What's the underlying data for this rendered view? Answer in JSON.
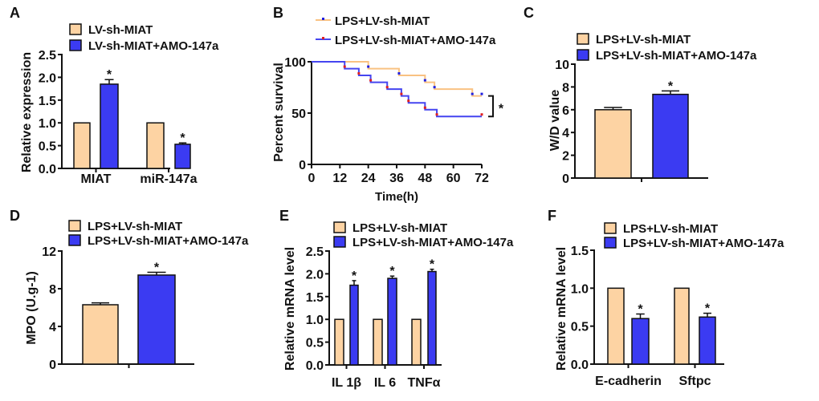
{
  "colors": {
    "control": "#FDD3A3",
    "treatment": "#3B3BF2",
    "survival_control": "#F9C282",
    "survival_treatment": "#4545F0",
    "censor_control": "#2020E0",
    "censor_treatment": "#E02020"
  },
  "chart_data": [
    {
      "panel": "A",
      "type": "bar",
      "categories": [
        "MIAT",
        "miR-147a"
      ],
      "series": [
        {
          "name": "LV-sh-MIAT",
          "values": [
            1.0,
            1.0
          ],
          "errors": [
            0,
            0
          ],
          "marks": [
            "",
            ""
          ]
        },
        {
          "name": "LV-sh-MIAT+AMO-147a",
          "values": [
            1.85,
            0.53
          ],
          "errors": [
            0.1,
            0.03
          ],
          "marks": [
            "*",
            "*"
          ]
        }
      ],
      "ylabel": "Relative expression",
      "xlabel": "",
      "ylim": [
        0,
        2.5
      ],
      "yticks": [
        "0.0",
        "0.5",
        "1.0",
        "1.5",
        "2.0",
        "2.5"
      ],
      "grid": false,
      "legend": "top"
    },
    {
      "panel": "B",
      "type": "line",
      "series": [
        {
          "name": "LPS+LV-sh-MIAT",
          "steps": [
            [
              0,
              100
            ],
            [
              24,
              93.3
            ],
            [
              37,
              86.7
            ],
            [
              48,
              80
            ],
            [
              52,
              73.3
            ],
            [
              68,
              66.7
            ],
            [
              72,
              66.7
            ]
          ]
        },
        {
          "name": "LPS+LV-sh-MIAT+AMO-147a",
          "steps": [
            [
              0,
              100
            ],
            [
              14,
              93.3
            ],
            [
              20,
              86.7
            ],
            [
              25,
              80
            ],
            [
              32,
              73.3
            ],
            [
              38,
              66.7
            ],
            [
              41,
              60
            ],
            [
              48,
              53.3
            ],
            [
              53,
              46.7
            ],
            [
              72,
              46.7
            ]
          ]
        }
      ],
      "ylabel": "Percent survival",
      "xlabel": "Time(h)",
      "xlim": [
        0,
        72
      ],
      "xticks": [
        "0",
        "12",
        "24",
        "36",
        "48",
        "60",
        "72"
      ],
      "ylim": [
        0,
        100
      ],
      "yticks": [
        "0",
        "50",
        "100"
      ],
      "significance": "*",
      "grid": false,
      "legend": "top"
    },
    {
      "panel": "C",
      "type": "bar",
      "categories": [
        ""
      ],
      "series": [
        {
          "name": "LPS+LV-sh-MIAT",
          "values": [
            6.0
          ],
          "errors": [
            0.2
          ],
          "marks": [
            ""
          ]
        },
        {
          "name": "LPS+LV-sh-MIAT+AMO-147a",
          "values": [
            7.35
          ],
          "errors": [
            0.3
          ],
          "marks": [
            "*"
          ]
        }
      ],
      "ylabel": "W/D value",
      "xlabel": "",
      "ylim": [
        0,
        10
      ],
      "yticks": [
        "0",
        "2",
        "4",
        "6",
        "8",
        "10"
      ],
      "grid": false,
      "legend": "top"
    },
    {
      "panel": "D",
      "type": "bar",
      "categories": [
        ""
      ],
      "series": [
        {
          "name": "LPS+LV-sh-MIAT",
          "values": [
            6.3
          ],
          "errors": [
            0.2
          ],
          "marks": [
            ""
          ]
        },
        {
          "name": "LPS+LV-sh-MIAT+AMO-147a",
          "values": [
            9.45
          ],
          "errors": [
            0.3
          ],
          "marks": [
            "*"
          ]
        }
      ],
      "ylabel": "MPO (U.g-1)",
      "xlabel": "",
      "ylim": [
        0,
        12
      ],
      "yticks": [
        "0",
        "4",
        "8",
        "12"
      ],
      "grid": false,
      "legend": "top"
    },
    {
      "panel": "E",
      "type": "bar",
      "categories": [
        "IL 1β",
        "IL 6",
        "TNFα"
      ],
      "series": [
        {
          "name": "LPS+LV-sh-MIAT",
          "values": [
            1.0,
            1.0,
            1.0
          ],
          "errors": [
            0,
            0,
            0
          ],
          "marks": [
            "",
            "",
            ""
          ]
        },
        {
          "name": "LPS+LV-sh-MIAT+AMO-147a",
          "values": [
            1.75,
            1.9,
            2.05
          ],
          "errors": [
            0.1,
            0.05,
            0.05
          ],
          "marks": [
            "*",
            "*",
            "*"
          ]
        }
      ],
      "ylabel": "Relative mRNA level",
      "xlabel": "",
      "ylim": [
        0,
        2.5
      ],
      "yticks": [
        "0.0",
        "0.5",
        "1.0",
        "1.5",
        "2.0",
        "2.5"
      ],
      "grid": false,
      "legend": "top"
    },
    {
      "panel": "F",
      "type": "bar",
      "categories": [
        "E-cadherin",
        "Sftpc"
      ],
      "series": [
        {
          "name": "LPS+LV-sh-MIAT",
          "values": [
            1.0,
            1.0
          ],
          "errors": [
            0,
            0
          ],
          "marks": [
            "",
            ""
          ]
        },
        {
          "name": "LPS+LV-sh-MIAT+AMO-147a",
          "values": [
            0.6,
            0.62
          ],
          "errors": [
            0.06,
            0.05
          ],
          "marks": [
            "*",
            "*"
          ]
        }
      ],
      "ylabel": "Relative mRNA level",
      "xlabel": "",
      "ylim": [
        0,
        1.5
      ],
      "yticks": [
        "0.0",
        "0.5",
        "1.0",
        "1.5"
      ],
      "grid": false,
      "legend": "top"
    }
  ]
}
